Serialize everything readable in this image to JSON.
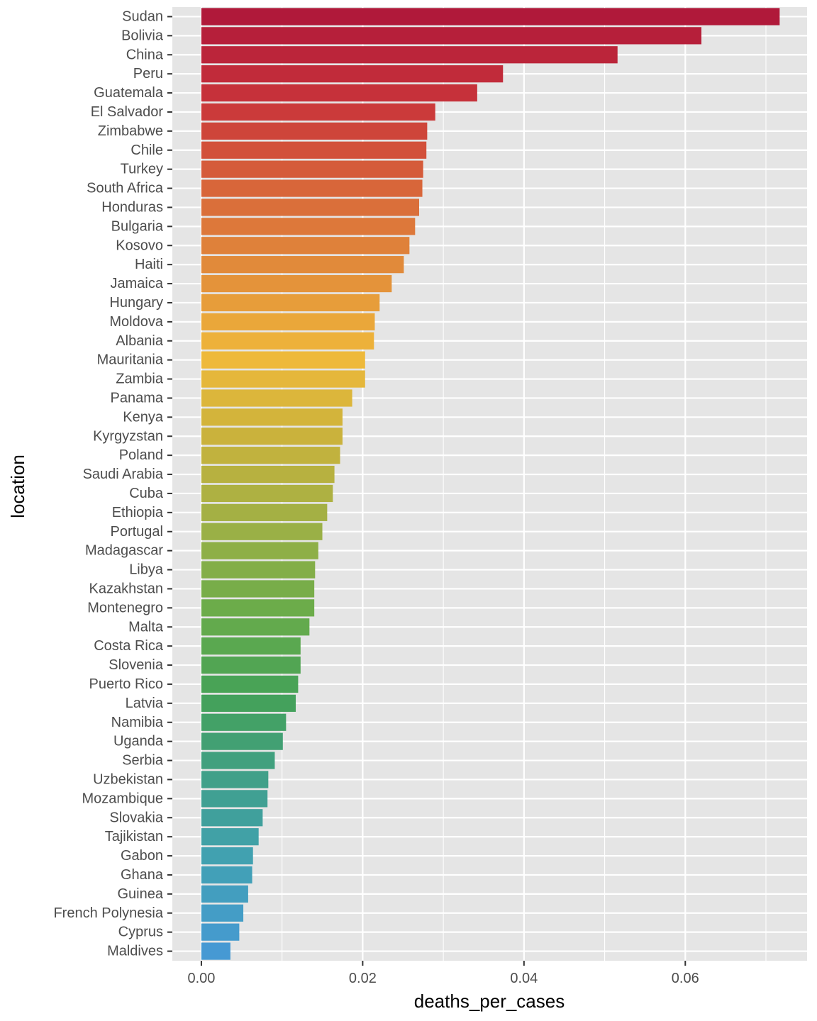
{
  "chart_data": {
    "type": "bar",
    "orientation": "horizontal",
    "title": "",
    "xlabel": "deaths_per_cases",
    "ylabel": "location",
    "xlim": [
      -0.0036,
      0.0751
    ],
    "x_ticks": [
      0.0,
      0.02,
      0.04,
      0.06
    ],
    "x_tick_labels": [
      "0.00",
      "0.02",
      "0.04",
      "0.06"
    ],
    "grid": true,
    "legend": "none",
    "colors": {
      "panel_background": "#e5e5e5",
      "grid_line": "#ffffff",
      "tick_label": "#4d4d4d",
      "tick_mark": "#333333",
      "axis_title": "#000000",
      "bar_gradient": [
        "#b0193a",
        "#c9343a",
        "#d8653a",
        "#e28d3a",
        "#f0b93a",
        "#c8b23c",
        "#9db046",
        "#6aac4a",
        "#44a158",
        "#40a08a",
        "#41a1b5",
        "#4699d3"
      ]
    },
    "categories": [
      "Sudan",
      "Bolivia",
      "China",
      "Peru",
      "Guatemala",
      "El Salvador",
      "Zimbabwe",
      "Chile",
      "Turkey",
      "South Africa",
      "Honduras",
      "Bulgaria",
      "Kosovo",
      "Haiti",
      "Jamaica",
      "Hungary",
      "Moldova",
      "Albania",
      "Mauritania",
      "Zambia",
      "Panama",
      "Kenya",
      "Kyrgyzstan",
      "Poland",
      "Saudi Arabia",
      "Cuba",
      "Ethiopia",
      "Portugal",
      "Madagascar",
      "Libya",
      "Kazakhstan",
      "Montenegro",
      "Malta",
      "Costa Rica",
      "Slovenia",
      "Puerto Rico",
      "Latvia",
      "Namibia",
      "Uganda",
      "Serbia",
      "Uzbekistan",
      "Mozambique",
      "Slovakia",
      "Tajikistan",
      "Gabon",
      "Ghana",
      "Guinea",
      "French Polynesia",
      "Cyprus",
      "Maldives"
    ],
    "values": [
      0.0717,
      0.062,
      0.0516,
      0.0374,
      0.0342,
      0.029,
      0.028,
      0.0279,
      0.0275,
      0.0274,
      0.027,
      0.0265,
      0.0258,
      0.0251,
      0.0236,
      0.0221,
      0.0215,
      0.0214,
      0.0203,
      0.0203,
      0.0187,
      0.0175,
      0.0175,
      0.0172,
      0.0165,
      0.0163,
      0.0156,
      0.015,
      0.0145,
      0.0141,
      0.014,
      0.014,
      0.0134,
      0.0123,
      0.0123,
      0.012,
      0.0117,
      0.0105,
      0.0101,
      0.0091,
      0.0083,
      0.0082,
      0.0076,
      0.0071,
      0.0064,
      0.0063,
      0.0058,
      0.0052,
      0.0047,
      0.0036
    ]
  }
}
